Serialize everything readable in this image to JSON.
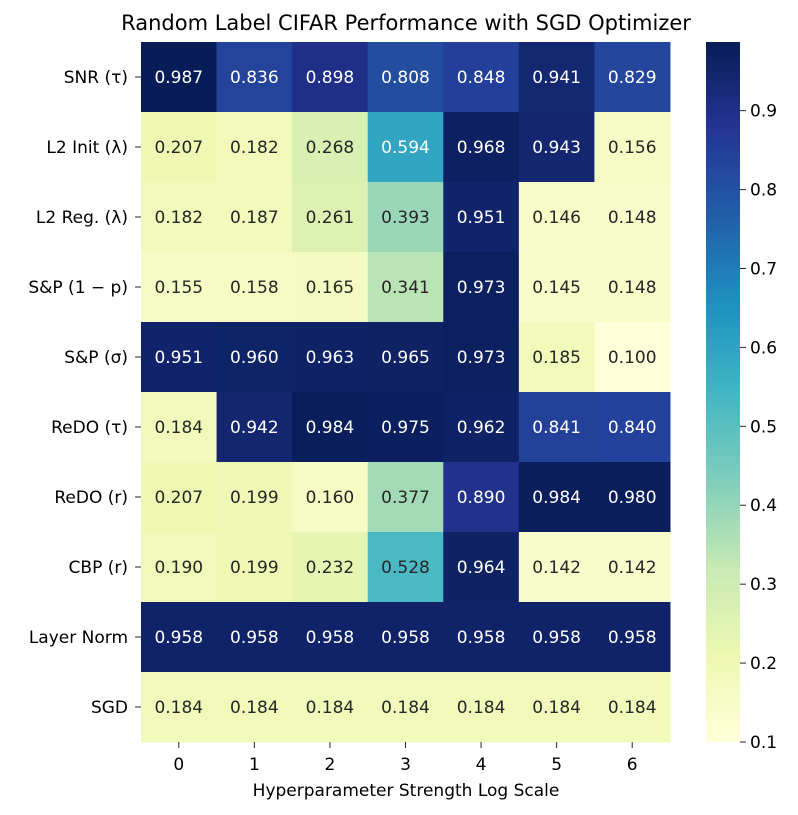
{
  "chart_data": {
    "type": "heatmap",
    "title": "Random Label CIFAR Performance with SGD Optimizer",
    "xlabel": "Hyperparameter Strength Log Scale",
    "ylabel": "",
    "x": [
      "0",
      "1",
      "2",
      "3",
      "4",
      "5",
      "6"
    ],
    "rows": [
      {
        "label": "SNR (τ)",
        "values": [
          "0.987",
          "0.836",
          "0.898",
          "0.808",
          "0.848",
          "0.941",
          "0.829"
        ]
      },
      {
        "label": "L2 Init (λ)",
        "values": [
          "0.207",
          "0.182",
          "0.268",
          "0.594",
          "0.968",
          "0.943",
          "0.156"
        ]
      },
      {
        "label": "L2 Reg. (λ)",
        "values": [
          "0.182",
          "0.187",
          "0.261",
          "0.393",
          "0.951",
          "0.146",
          "0.148"
        ]
      },
      {
        "label": "S&P (1 − p)",
        "values": [
          "0.155",
          "0.158",
          "0.165",
          "0.341",
          "0.973",
          "0.145",
          "0.148"
        ]
      },
      {
        "label": "S&P (σ)",
        "values": [
          "0.951",
          "0.960",
          "0.963",
          "0.965",
          "0.973",
          "0.185",
          "0.100"
        ]
      },
      {
        "label": "ReDO (τ)",
        "values": [
          "0.184",
          "0.942",
          "0.984",
          "0.975",
          "0.962",
          "0.841",
          "0.840"
        ]
      },
      {
        "label": "ReDO (r)",
        "values": [
          "0.207",
          "0.199",
          "0.160",
          "0.377",
          "0.890",
          "0.984",
          "0.980"
        ]
      },
      {
        "label": "CBP (r)",
        "values": [
          "0.190",
          "0.199",
          "0.232",
          "0.528",
          "0.964",
          "0.142",
          "0.142"
        ]
      },
      {
        "label": "Layer Norm",
        "values": [
          "0.958",
          "0.958",
          "0.958",
          "0.958",
          "0.958",
          "0.958",
          "0.958"
        ]
      },
      {
        "label": "SGD",
        "values": [
          "0.184",
          "0.184",
          "0.184",
          "0.184",
          "0.184",
          "0.184",
          "0.184"
        ]
      }
    ],
    "colorbar": {
      "colormap": "YlGnBu",
      "range": [
        0.1,
        0.987
      ],
      "ticks": [
        "0.1",
        "0.2",
        "0.3",
        "0.4",
        "0.5",
        "0.6",
        "0.7",
        "0.8",
        "0.9"
      ]
    },
    "grid": false
  }
}
